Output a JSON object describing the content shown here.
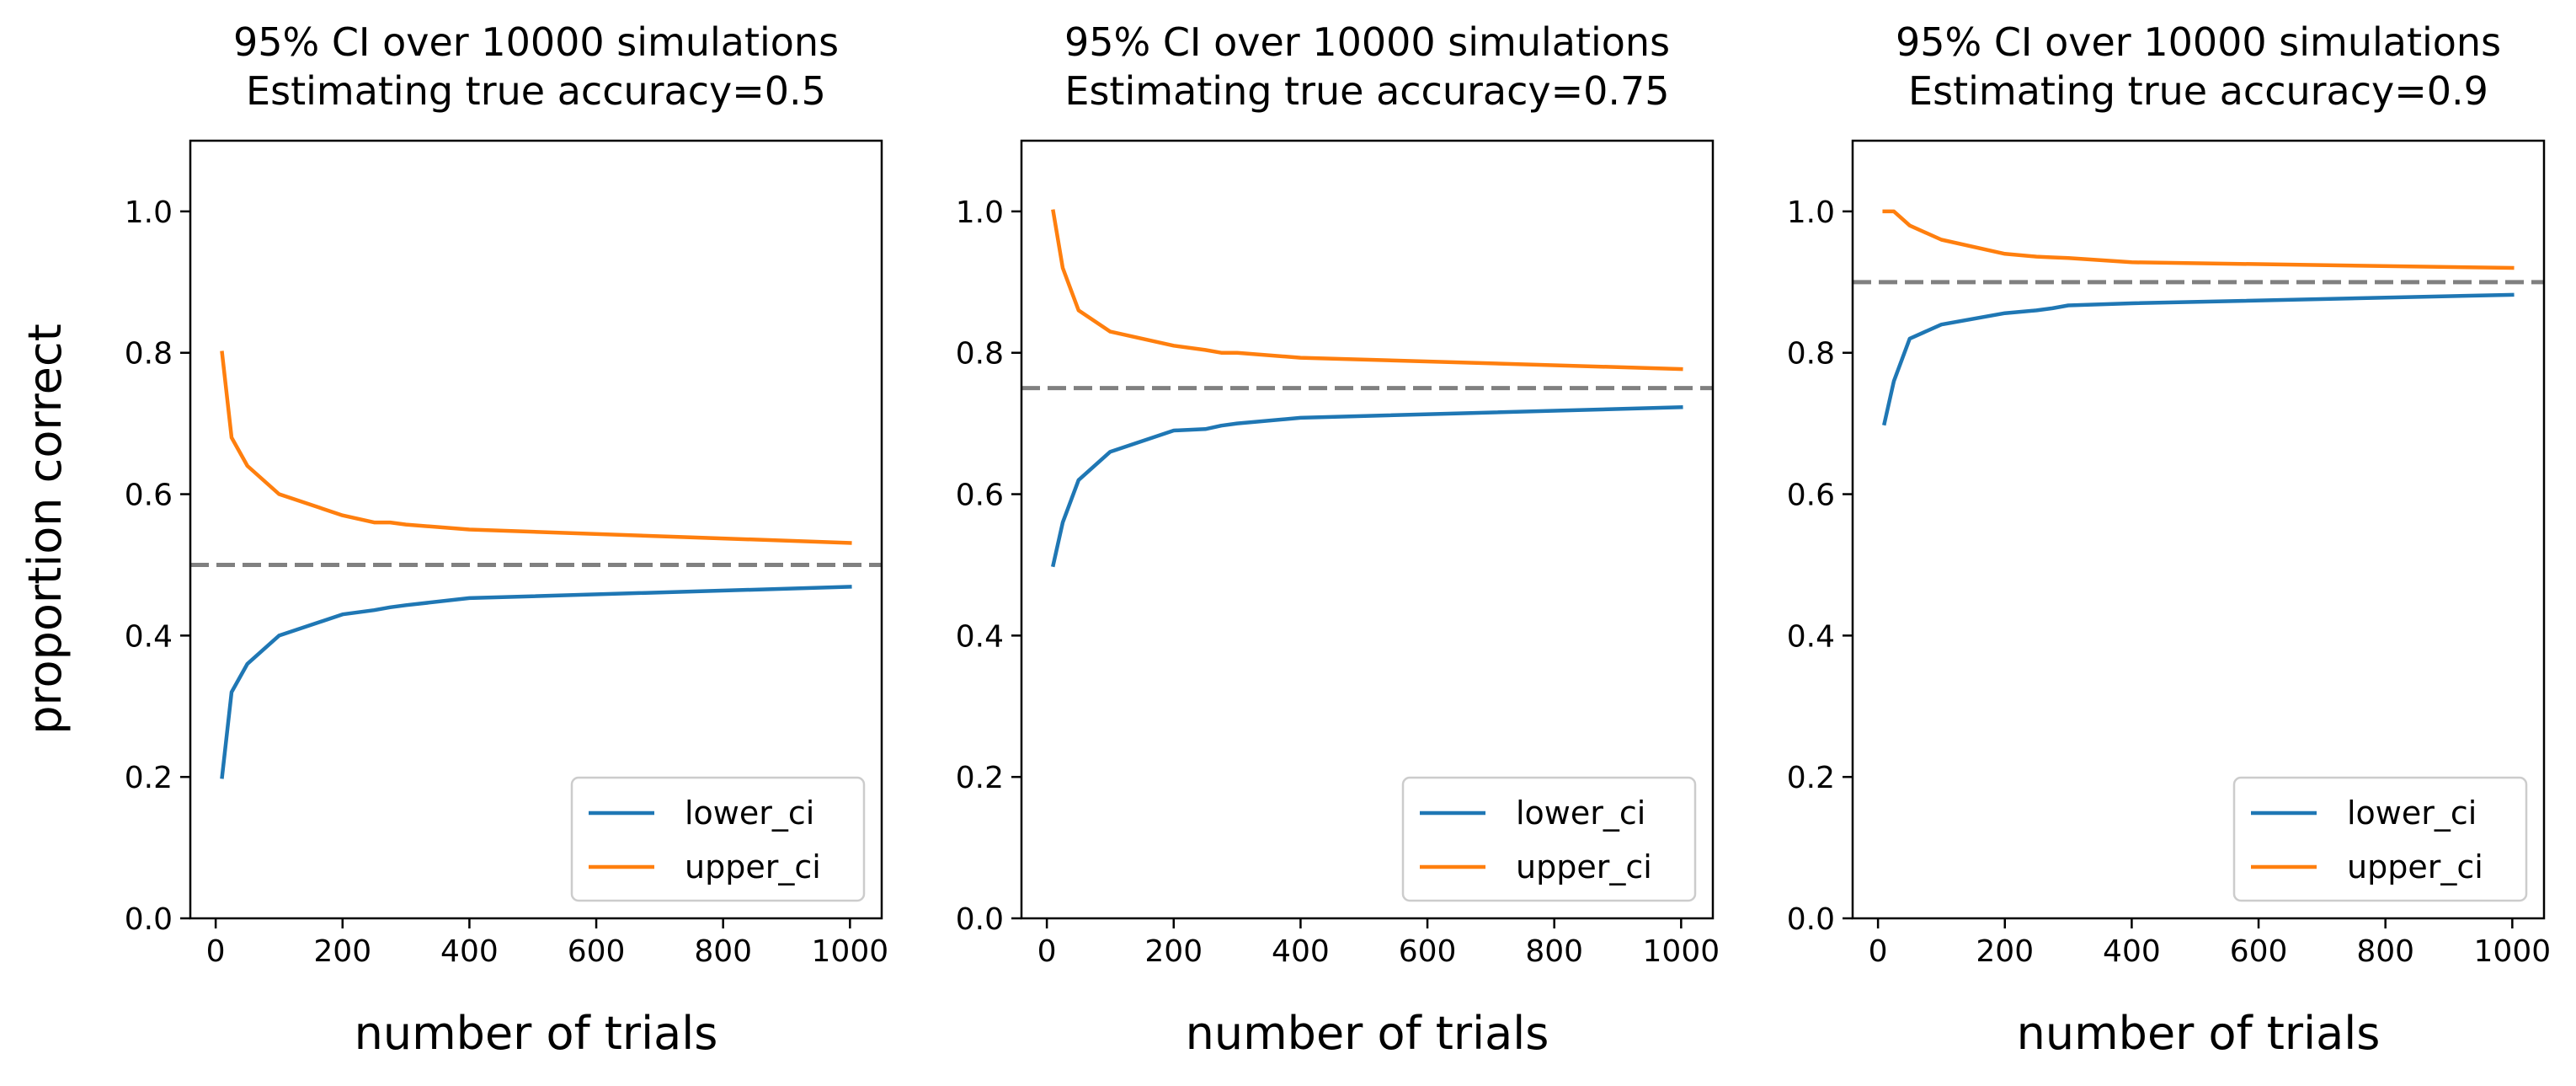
{
  "figure": {
    "ylabel": "proportion correct"
  },
  "chart_data": [
    {
      "type": "line",
      "title": "95% CI over 10000 simulations\nEstimating true accuracy=0.5",
      "title_lines": [
        "95% CI over 10000 simulations",
        "Estimating true accuracy=0.5"
      ],
      "xlabel": "number of trials",
      "ylabel": "proportion correct",
      "xlim": [
        -40,
        1050
      ],
      "ylim": [
        0,
        1.1
      ],
      "xticks": [
        "0",
        "200",
        "400",
        "600",
        "800",
        "1000"
      ],
      "yticks": [
        "0.0",
        "0.2",
        "0.4",
        "0.6",
        "0.8",
        "1.0"
      ],
      "reference_line": {
        "y": 0.5,
        "style": "dashed",
        "color": "#808080"
      },
      "legend": {
        "position": "lower-right",
        "entries": [
          "lower_ci",
          "upper_ci"
        ]
      },
      "x": [
        10,
        25,
        50,
        100,
        200,
        250,
        275,
        300,
        400,
        1000
      ],
      "series": [
        {
          "name": "lower_ci",
          "color": "#1f77b4",
          "values": [
            0.2,
            0.32,
            0.36,
            0.4,
            0.43,
            0.436,
            0.44,
            0.443,
            0.453,
            0.469
          ]
        },
        {
          "name": "upper_ci",
          "color": "#ff7f0e",
          "values": [
            0.8,
            0.68,
            0.64,
            0.6,
            0.57,
            0.56,
            0.56,
            0.557,
            0.55,
            0.531
          ]
        }
      ]
    },
    {
      "type": "line",
      "title": "95% CI over 10000 simulations\nEstimating true accuracy=0.75",
      "title_lines": [
        "95% CI over 10000 simulations",
        "Estimating true accuracy=0.75"
      ],
      "xlabel": "number of trials",
      "ylabel": "",
      "xlim": [
        -40,
        1050
      ],
      "ylim": [
        0,
        1.1
      ],
      "xticks": [
        "0",
        "200",
        "400",
        "600",
        "800",
        "1000"
      ],
      "yticks": [
        "0.0",
        "0.2",
        "0.4",
        "0.6",
        "0.8",
        "1.0"
      ],
      "reference_line": {
        "y": 0.75,
        "style": "dashed",
        "color": "#808080"
      },
      "legend": {
        "position": "lower-right",
        "entries": [
          "lower_ci",
          "upper_ci"
        ]
      },
      "x": [
        10,
        25,
        50,
        100,
        200,
        250,
        275,
        300,
        400,
        1000
      ],
      "series": [
        {
          "name": "lower_ci",
          "color": "#1f77b4",
          "values": [
            0.5,
            0.56,
            0.62,
            0.66,
            0.69,
            0.692,
            0.697,
            0.7,
            0.708,
            0.723
          ]
        },
        {
          "name": "upper_ci",
          "color": "#ff7f0e",
          "values": [
            1.0,
            0.92,
            0.86,
            0.83,
            0.81,
            0.804,
            0.8,
            0.8,
            0.793,
            0.777
          ]
        }
      ]
    },
    {
      "type": "line",
      "title": "95% CI over 10000 simulations\nEstimating true accuracy=0.9",
      "title_lines": [
        "95% CI over 10000 simulations",
        "Estimating true accuracy=0.9"
      ],
      "xlabel": "number of trials",
      "ylabel": "",
      "xlim": [
        -40,
        1050
      ],
      "ylim": [
        0,
        1.1
      ],
      "xticks": [
        "0",
        "200",
        "400",
        "600",
        "800",
        "1000"
      ],
      "yticks": [
        "0.0",
        "0.2",
        "0.4",
        "0.6",
        "0.8",
        "1.0"
      ],
      "reference_line": {
        "y": 0.9,
        "style": "dashed",
        "color": "#808080"
      },
      "legend": {
        "position": "lower-right",
        "entries": [
          "lower_ci",
          "upper_ci"
        ]
      },
      "x": [
        10,
        25,
        50,
        100,
        200,
        250,
        275,
        300,
        400,
        1000
      ],
      "series": [
        {
          "name": "lower_ci",
          "color": "#1f77b4",
          "values": [
            0.7,
            0.76,
            0.82,
            0.84,
            0.856,
            0.86,
            0.863,
            0.867,
            0.87,
            0.882
          ]
        },
        {
          "name": "upper_ci",
          "color": "#ff7f0e",
          "values": [
            1.0,
            1.0,
            0.98,
            0.96,
            0.94,
            0.936,
            0.935,
            0.934,
            0.928,
            0.92
          ]
        }
      ]
    }
  ]
}
